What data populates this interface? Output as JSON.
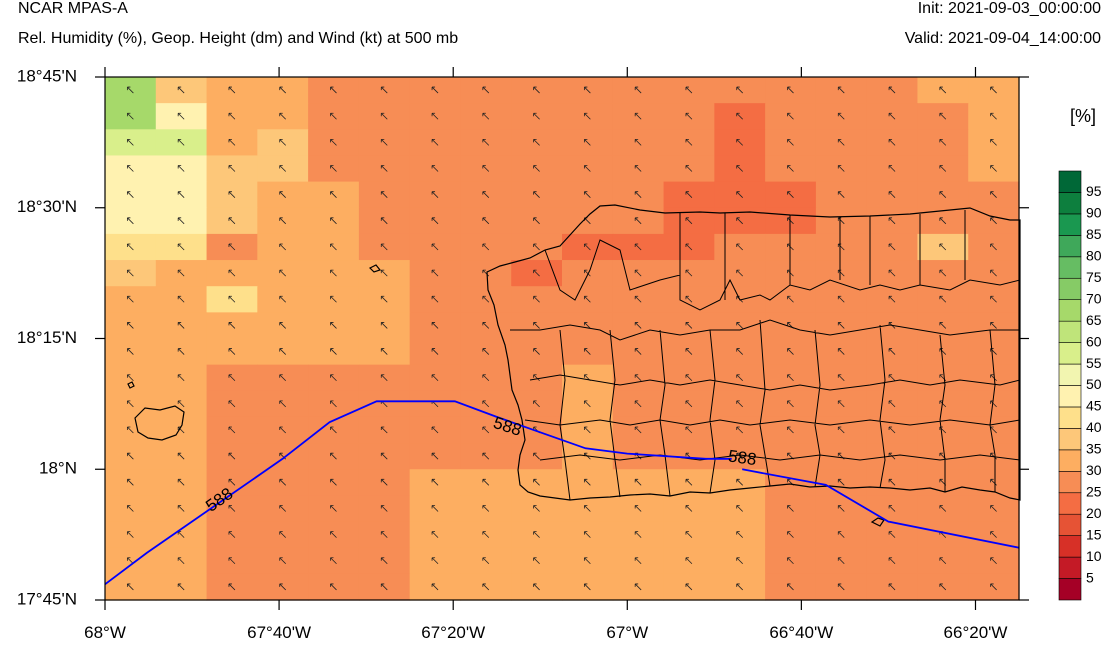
{
  "header": {
    "model": "NCAR MPAS-A",
    "fields": "Rel. Humidity (%), Geop. Height (dm) and Wind (kt) at 500 mb",
    "init": "Init: 2021-09-03_00:00:00",
    "valid": "Valid: 2021-09-04_14:00:00"
  },
  "axes": {
    "lat_labels": [
      "18°45'N",
      "18°30'N",
      "18°15'N",
      "18°N",
      "17°45'N"
    ],
    "lon_labels": [
      "68°W",
      "67°40'W",
      "67°20'W",
      "67°W",
      "66°40'W",
      "66°20'W"
    ]
  },
  "colorbar": {
    "unit": "[%]",
    "levels": [
      "5",
      "10",
      "15",
      "20",
      "25",
      "30",
      "35",
      "40",
      "45",
      "50",
      "55",
      "60",
      "65",
      "70",
      "75",
      "80",
      "85",
      "90",
      "95"
    ],
    "colors": [
      "#a50026",
      "#c41a26",
      "#d73027",
      "#e65335",
      "#f46d43",
      "#f78d55",
      "#fdae61",
      "#fdc779",
      "#fee08b",
      "#fff2b0",
      "#f2f5b0",
      "#d9ef8b",
      "#bfe47a",
      "#a6d96a",
      "#86cb66",
      "#66bd63",
      "#3fa85a",
      "#1a9850",
      "#0d7f3e",
      "#006837"
    ]
  },
  "contour": {
    "label": "588",
    "color": "#0000ff"
  },
  "map_data": {
    "projection": "cylindrical",
    "lon_range": [
      -68.0,
      -66.25
    ],
    "lat_range": [
      17.75,
      18.75
    ],
    "humidity_grid_rows_top_to_bottom": [
      [
        65,
        35,
        30,
        30,
        25,
        25,
        25,
        25,
        25,
        25,
        25,
        25,
        25,
        25,
        25,
        25,
        30,
        30
      ],
      [
        65,
        45,
        30,
        30,
        25,
        25,
        25,
        25,
        25,
        25,
        25,
        25,
        20,
        25,
        25,
        25,
        25,
        30
      ],
      [
        55,
        55,
        30,
        35,
        25,
        25,
        25,
        25,
        25,
        25,
        25,
        25,
        20,
        25,
        25,
        25,
        25,
        30
      ],
      [
        45,
        45,
        35,
        35,
        25,
        25,
        25,
        25,
        25,
        25,
        25,
        25,
        20,
        25,
        25,
        25,
        25,
        30
      ],
      [
        45,
        45,
        35,
        30,
        30,
        25,
        25,
        25,
        25,
        25,
        25,
        20,
        20,
        20,
        25,
        25,
        25,
        25
      ],
      [
        45,
        45,
        35,
        30,
        30,
        25,
        25,
        25,
        25,
        25,
        25,
        20,
        20,
        20,
        25,
        25,
        25,
        25
      ],
      [
        40,
        40,
        25,
        30,
        30,
        25,
        25,
        25,
        25,
        20,
        20,
        20,
        25,
        25,
        25,
        25,
        35,
        25
      ],
      [
        35,
        30,
        30,
        30,
        30,
        30,
        25,
        25,
        20,
        25,
        25,
        25,
        25,
        25,
        25,
        25,
        25,
        25
      ],
      [
        30,
        30,
        40,
        30,
        30,
        30,
        25,
        25,
        25,
        25,
        25,
        25,
        25,
        25,
        25,
        25,
        25,
        25
      ],
      [
        30,
        30,
        30,
        30,
        30,
        30,
        25,
        25,
        25,
        25,
        25,
        25,
        25,
        25,
        25,
        25,
        25,
        25
      ],
      [
        30,
        30,
        30,
        30,
        30,
        30,
        25,
        25,
        25,
        25,
        25,
        25,
        25,
        25,
        25,
        25,
        25,
        25
      ],
      [
        30,
        30,
        25,
        25,
        25,
        25,
        25,
        25,
        25,
        30,
        25,
        25,
        25,
        25,
        25,
        25,
        25,
        25
      ],
      [
        30,
        30,
        25,
        25,
        25,
        25,
        25,
        25,
        25,
        30,
        25,
        25,
        25,
        25,
        25,
        25,
        25,
        25
      ],
      [
        30,
        30,
        25,
        25,
        25,
        25,
        25,
        25,
        25,
        30,
        25,
        25,
        25,
        25,
        25,
        25,
        25,
        25
      ],
      [
        30,
        30,
        25,
        25,
        25,
        25,
        25,
        25,
        25,
        30,
        25,
        25,
        25,
        25,
        25,
        25,
        25,
        25
      ],
      [
        30,
        30,
        25,
        25,
        25,
        25,
        30,
        30,
        30,
        30,
        30,
        30,
        30,
        25,
        25,
        25,
        25,
        25
      ],
      [
        30,
        30,
        25,
        25,
        25,
        25,
        30,
        30,
        30,
        30,
        30,
        30,
        30,
        25,
        25,
        25,
        25,
        25
      ],
      [
        30,
        30,
        25,
        25,
        25,
        25,
        30,
        30,
        30,
        30,
        30,
        30,
        30,
        25,
        25,
        25,
        25,
        25
      ],
      [
        30,
        30,
        25,
        25,
        25,
        25,
        30,
        30,
        30,
        30,
        30,
        30,
        30,
        25,
        25,
        25,
        25,
        25
      ],
      [
        30,
        30,
        25,
        25,
        25,
        25,
        30,
        30,
        30,
        30,
        30,
        30,
        30,
        25,
        25,
        25,
        25,
        25
      ]
    ],
    "contour_588_lonlat": [
      [
        -68.0,
        17.78
      ],
      [
        -67.92,
        17.84
      ],
      [
        -67.66,
        18.02
      ],
      [
        -67.57,
        18.09
      ],
      [
        -67.48,
        18.13
      ],
      [
        -67.33,
        18.13
      ],
      [
        -67.25,
        18.1
      ],
      [
        -67.08,
        18.04
      ],
      [
        -67.0,
        18.03
      ],
      [
        -66.85,
        18.02
      ],
      [
        -66.8,
        18.02
      ]
    ],
    "contour_588_lonlat_2": [
      [
        -66.78,
        18.0
      ],
      [
        -66.62,
        17.97
      ],
      [
        -66.5,
        17.9
      ],
      [
        -66.25,
        17.85
      ]
    ]
  }
}
